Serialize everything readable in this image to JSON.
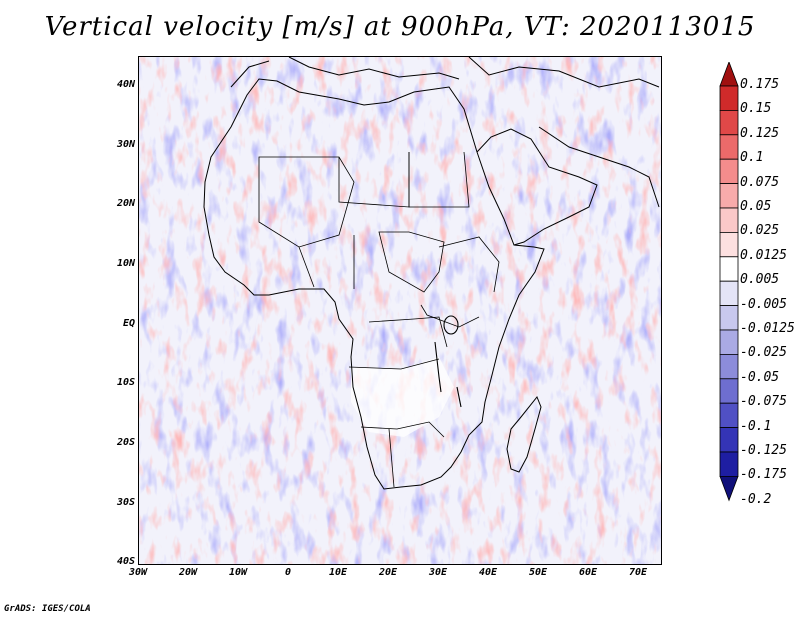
{
  "title": "Vertical velocity [m/s] at 900hPa, VT: 2020113015",
  "credit": "GrADS: IGES/COLA",
  "axes": {
    "lat_labels": [
      "40N",
      "30N",
      "20N",
      "10N",
      "EQ",
      "10S",
      "20S",
      "30S",
      "40S"
    ],
    "lon_labels": [
      "30W",
      "20W",
      "10W",
      "0",
      "10E",
      "20E",
      "30E",
      "40E",
      "50E",
      "60E",
      "70E"
    ]
  },
  "colorbar": {
    "labels": [
      "0.175",
      "0.15",
      "0.125",
      "0.1",
      "0.075",
      "0.05",
      "0.025",
      "0.0125",
      "0.005",
      "-0.005",
      "-0.0125",
      "-0.025",
      "-0.05",
      "-0.075",
      "-0.1",
      "-0.125",
      "-0.175",
      "-0.2"
    ],
    "colors": [
      "#b41818",
      "#d02a2a",
      "#e04848",
      "#ec6a6a",
      "#f48c8c",
      "#f8abab",
      "#fbc8c8",
      "#fde0e0",
      "#ffffff",
      "#e4e4f7",
      "#c8c8ee",
      "#aaaae4",
      "#8c8cda",
      "#6e6ed0",
      "#5050c4",
      "#3434b6",
      "#1e1ea2",
      "#14148a"
    ],
    "top_arrow_color": "#a01010",
    "bottom_arrow_color": "#10107a"
  }
}
